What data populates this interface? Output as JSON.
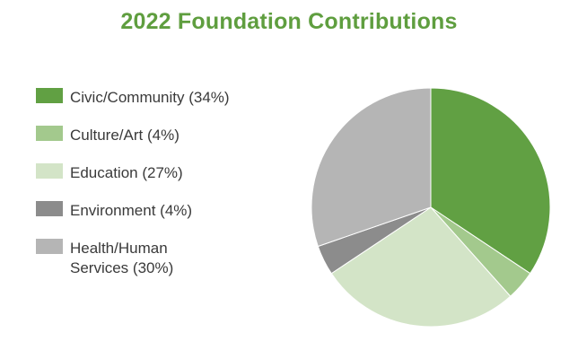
{
  "chart_data": {
    "type": "pie",
    "title": "2022 Foundation Contributions",
    "slices": [
      {
        "label": "Civic/Community (34%)",
        "value": 34,
        "color": "#61a043"
      },
      {
        "label": "Culture/Art (4%)",
        "value": 4,
        "color": "#a3c98d"
      },
      {
        "label": "Education (27%)",
        "value": 27,
        "color": "#d3e4c7"
      },
      {
        "label": "Environment (4%)",
        "value": 4,
        "color": "#8c8c8c"
      },
      {
        "label": "Health/Human Services (30%)",
        "value": 30,
        "color": "#b5b5b5"
      }
    ],
    "legend_position": "left"
  }
}
